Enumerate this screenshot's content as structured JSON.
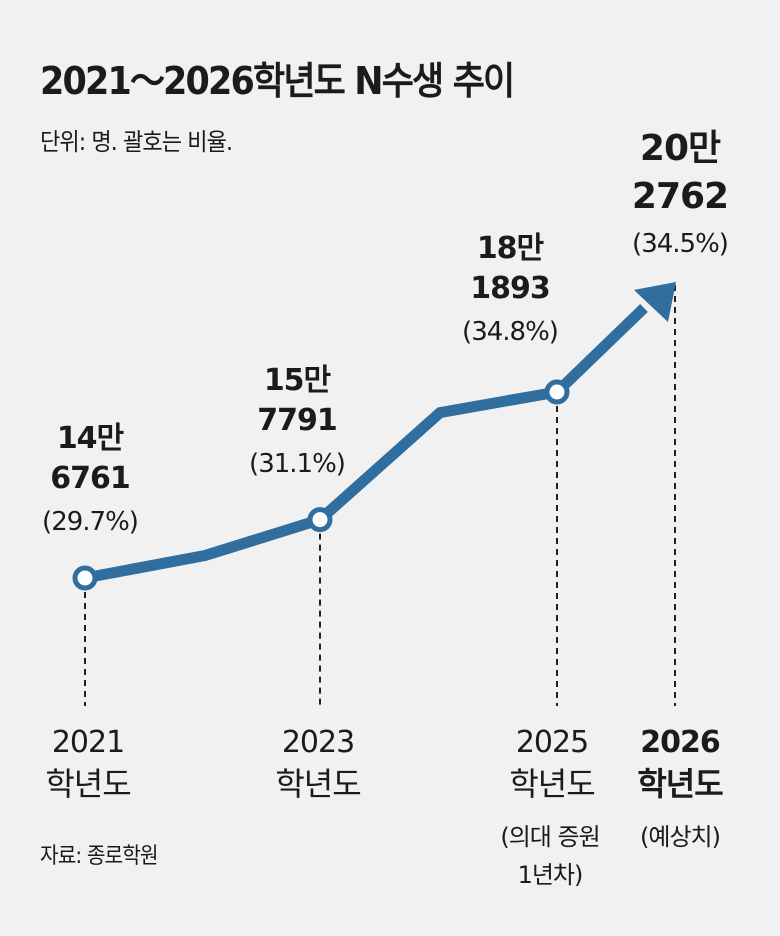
{
  "chart_data": {
    "type": "line",
    "title": "2021～2026학년도 N수생 추이",
    "subtitle": "단위: 명. 괄호는 비율.",
    "source": "자료: 종로학원",
    "xlabel": "",
    "ylabel": "",
    "color": "#2f6e9e",
    "series": [
      {
        "name": "N수생",
        "x": [
          "2021",
          "2022",
          "2023",
          "2024",
          "2025",
          "2026"
        ],
        "values": [
          146761,
          151000,
          157791,
          178000,
          181893,
          202762
        ]
      }
    ],
    "labeled_points": [
      {
        "year": "2021",
        "value_line1": "14만",
        "value_line2": "6761",
        "ratio": "(29.7%)",
        "x_label1": "2021",
        "x_label2": "학년도",
        "note": [],
        "bold": false
      },
      {
        "year": "2023",
        "value_line1": "15만",
        "value_line2": "7791",
        "ratio": "(31.1%)",
        "x_label1": "2023",
        "x_label2": "학년도",
        "note": [],
        "bold": false
      },
      {
        "year": "2025",
        "value_line1": "18만",
        "value_line2": "1893",
        "ratio": "(34.8%)",
        "x_label1": "2025",
        "x_label2": "학년도",
        "note": [
          "(의대 증원",
          "1년차)"
        ],
        "bold": false
      },
      {
        "year": "2026",
        "value_line1": "20만",
        "value_line2": "2762",
        "ratio": "(34.5%)",
        "x_label1": "2026",
        "x_label2": "학년도",
        "note": [
          "(예상치)"
        ],
        "bold": true
      }
    ]
  }
}
